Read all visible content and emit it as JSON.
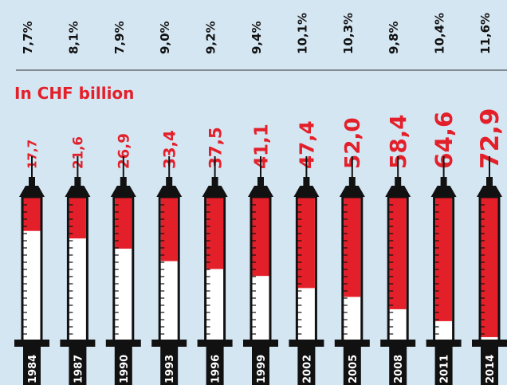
{
  "chart_data": {
    "type": "syringe",
    "subtitle": "In CHF billion",
    "color": "#e3202a",
    "categories": [
      "1984",
      "1987",
      "1990",
      "1993",
      "1996",
      "1999",
      "2002",
      "2005",
      "2008",
      "2011",
      "2014"
    ],
    "values": [
      17.7,
      21.6,
      26.9,
      33.4,
      37.5,
      41.1,
      47.4,
      52.0,
      58.4,
      64.6,
      72.9
    ],
    "value_labels": [
      "17,7",
      "21,6",
      "26,9",
      "33,4",
      "37,5",
      "41,1",
      "47,4",
      "52,0",
      "58,4",
      "64,6",
      "72,9"
    ],
    "shares": [
      7.7,
      8.1,
      7.9,
      9.0,
      9.2,
      9.4,
      10.1,
      10.3,
      9.8,
      10.4,
      11.6
    ],
    "share_labels": [
      "7,7%",
      "8,1%",
      "7,9%",
      "9,0%",
      "9,2%",
      "9,4%",
      "10,1%",
      "10,3%",
      "9,8%",
      "10,4%",
      "11,6%"
    ],
    "ylim": [
      0,
      75
    ]
  }
}
